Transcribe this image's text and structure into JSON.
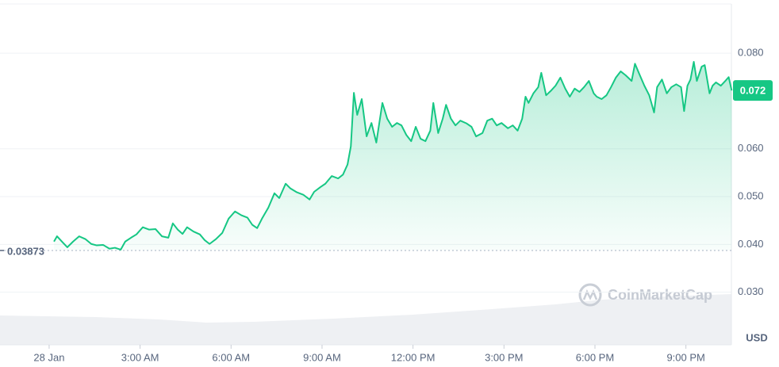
{
  "chart_data": {
    "type": "line",
    "color": "#16c784",
    "grid": true,
    "y_unit": "USD",
    "watermark": "CoinMarketCap",
    "last_price_label": "0.072",
    "baseline": 0.03873,
    "xlim": [
      -1.62,
      22.5
    ],
    "ylim": [
      0.019,
      0.0903
    ],
    "xticks": [
      {
        "value": 0,
        "label": "28 Jan"
      },
      {
        "value": 3,
        "label": "3:00 AM"
      },
      {
        "value": 6,
        "label": "6:00 AM"
      },
      {
        "value": 9,
        "label": "9:00 AM"
      },
      {
        "value": 12,
        "label": "12:00 PM"
      },
      {
        "value": 15,
        "label": "3:00 PM"
      },
      {
        "value": 18,
        "label": "6:00 PM"
      },
      {
        "value": 21,
        "label": "9:00 PM"
      }
    ],
    "yticks": [
      {
        "value": 0.03,
        "label": "0.030"
      },
      {
        "value": 0.04,
        "label": "0.040"
      },
      {
        "value": 0.05,
        "label": "0.050"
      },
      {
        "value": 0.06,
        "label": "0.060"
      },
      {
        "value": 0.08,
        "label": "0.080"
      }
    ],
    "x": [
      0.16,
      0.26,
      0.42,
      0.6,
      0.79,
      0.99,
      1.2,
      1.39,
      1.57,
      1.78,
      1.99,
      2.17,
      2.36,
      2.51,
      2.7,
      2.88,
      3.09,
      3.3,
      3.51,
      3.72,
      3.93,
      4.08,
      4.24,
      4.4,
      4.55,
      4.76,
      4.97,
      5.13,
      5.29,
      5.5,
      5.71,
      5.92,
      6.13,
      6.34,
      6.54,
      6.7,
      6.86,
      7.02,
      7.23,
      7.43,
      7.59,
      7.8,
      7.96,
      8.17,
      8.38,
      8.59,
      8.74,
      8.95,
      9.11,
      9.32,
      9.53,
      9.69,
      9.84,
      9.95,
      10.05,
      10.16,
      10.31,
      10.47,
      10.63,
      10.79,
      10.99,
      11.15,
      11.31,
      11.47,
      11.62,
      11.78,
      11.94,
      12.09,
      12.25,
      12.41,
      12.57,
      12.67,
      12.83,
      12.98,
      13.09,
      13.25,
      13.4,
      13.56,
      13.77,
      13.93,
      14.08,
      14.29,
      14.45,
      14.61,
      14.76,
      14.92,
      15.13,
      15.29,
      15.45,
      15.6,
      15.71,
      15.81,
      15.97,
      16.13,
      16.23,
      16.39,
      16.54,
      16.7,
      16.86,
      17.02,
      17.17,
      17.33,
      17.49,
      17.64,
      17.8,
      17.96,
      18.06,
      18.22,
      18.38,
      18.53,
      18.69,
      18.85,
      19.01,
      19.21,
      19.32,
      19.48,
      19.63,
      19.79,
      19.95,
      20.05,
      20.21,
      20.37,
      20.52,
      20.68,
      20.84,
      20.94,
      21.05,
      21.15,
      21.26,
      21.36,
      21.52,
      21.62,
      21.78,
      21.88,
      21.99,
      22.15,
      22.3,
      22.41,
      22.51
    ],
    "values": [
      0.0406,
      0.0417,
      0.0406,
      0.0394,
      0.0406,
      0.0417,
      0.0411,
      0.0401,
      0.0398,
      0.0399,
      0.0391,
      0.0393,
      0.0389,
      0.0406,
      0.0414,
      0.0421,
      0.0436,
      0.0431,
      0.0432,
      0.0417,
      0.0414,
      0.0444,
      0.0431,
      0.0422,
      0.0436,
      0.0427,
      0.0421,
      0.0409,
      0.0401,
      0.0411,
      0.0424,
      0.0454,
      0.0469,
      0.0461,
      0.0456,
      0.0441,
      0.0434,
      0.0454,
      0.0477,
      0.0507,
      0.0497,
      0.0527,
      0.0517,
      0.0509,
      0.0504,
      0.0494,
      0.051,
      0.052,
      0.0527,
      0.0543,
      0.0538,
      0.0546,
      0.0567,
      0.0605,
      0.0717,
      0.0671,
      0.0704,
      0.0626,
      0.0654,
      0.0613,
      0.0696,
      0.0663,
      0.0646,
      0.0654,
      0.0649,
      0.0629,
      0.0616,
      0.0646,
      0.0621,
      0.0616,
      0.0638,
      0.0696,
      0.0633,
      0.0663,
      0.0692,
      0.0663,
      0.0649,
      0.0659,
      0.0653,
      0.0646,
      0.0626,
      0.0633,
      0.0659,
      0.0663,
      0.0649,
      0.0654,
      0.0643,
      0.0649,
      0.0638,
      0.0663,
      0.0709,
      0.0696,
      0.0716,
      0.0729,
      0.0759,
      0.0712,
      0.0721,
      0.0732,
      0.0749,
      0.0726,
      0.0709,
      0.0726,
      0.0719,
      0.0729,
      0.0742,
      0.0716,
      0.0709,
      0.0704,
      0.0712,
      0.0729,
      0.0749,
      0.0762,
      0.0754,
      0.0742,
      0.0778,
      0.0754,
      0.0732,
      0.0712,
      0.0676,
      0.0729,
      0.0745,
      0.0716,
      0.0729,
      0.0735,
      0.0729,
      0.0679,
      0.0732,
      0.0745,
      0.0782,
      0.0742,
      0.0772,
      0.0775,
      0.0716,
      0.0732,
      0.0739,
      0.0732,
      0.0742,
      0.075,
      0.0722
    ]
  }
}
